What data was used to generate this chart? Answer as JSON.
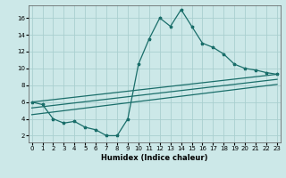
{
  "xlabel": "Humidex (Indice chaleur)",
  "background_color": "#cce8e8",
  "grid_color": "#aacfcf",
  "line_color": "#1a6e6a",
  "x_ticks": [
    0,
    1,
    2,
    3,
    4,
    5,
    6,
    7,
    8,
    9,
    10,
    11,
    12,
    13,
    14,
    15,
    16,
    17,
    18,
    19,
    20,
    21,
    22,
    23
  ],
  "y_ticks": [
    2,
    4,
    6,
    8,
    10,
    12,
    14,
    16
  ],
  "xlim": [
    -0.3,
    23.3
  ],
  "ylim": [
    1.2,
    17.5
  ],
  "main_x": [
    0,
    1,
    2,
    3,
    4,
    5,
    6,
    7,
    8,
    9,
    10,
    11,
    12,
    13,
    14,
    15,
    16,
    17,
    18,
    19,
    20,
    21,
    22,
    23
  ],
  "main_y": [
    6.0,
    5.7,
    4.0,
    3.5,
    3.7,
    3.0,
    2.7,
    2.0,
    2.0,
    4.0,
    10.5,
    13.5,
    16.0,
    15.0,
    17.0,
    15.0,
    13.0,
    12.5,
    11.7,
    10.5,
    10.0,
    9.8,
    9.5,
    9.3
  ],
  "trend_lines": [
    {
      "x": [
        0,
        23
      ],
      "y": [
        6.0,
        9.3
      ]
    },
    {
      "x": [
        0,
        23
      ],
      "y": [
        5.3,
        8.7
      ]
    },
    {
      "x": [
        0,
        23
      ],
      "y": [
        4.5,
        8.1
      ]
    }
  ],
  "xlabel_fontsize": 6.0,
  "xlabel_bold": true,
  "tick_fontsize": 5.0,
  "linewidth": 0.9,
  "markersize": 2.5
}
